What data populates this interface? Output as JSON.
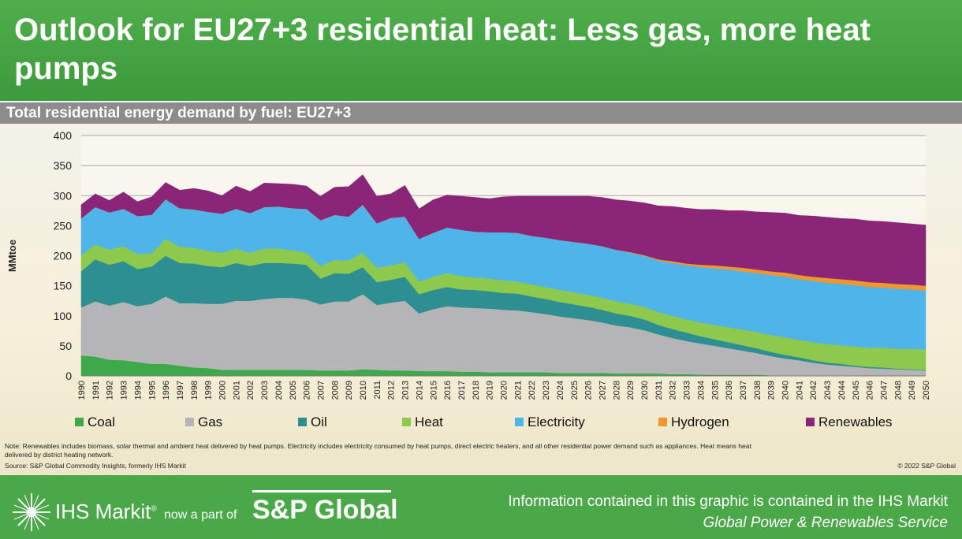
{
  "header": {
    "title": "Outlook for EU27+3 residential heat: Less gas, more heat pumps"
  },
  "subheader": {
    "title": "Total residential energy demand by fuel: EU27+3"
  },
  "chart_data": {
    "type": "area",
    "stacked": true,
    "title": "Total residential energy demand by fuel: EU27+3",
    "ylabel": "MMtoe",
    "xlabel": "",
    "ylim": [
      0,
      400
    ],
    "yticks": [
      "0",
      "50",
      "100",
      "150",
      "200",
      "250",
      "300",
      "350",
      "400"
    ],
    "grid": true,
    "legend_position": "bottom",
    "x": [
      "1990",
      "1991",
      "1992",
      "1993",
      "1994",
      "1995",
      "1996",
      "1997",
      "1998",
      "1999",
      "2000",
      "2001",
      "2002",
      "2003",
      "2004",
      "2005",
      "2006",
      "2007",
      "2008",
      "2009",
      "2010",
      "2011",
      "2012",
      "2013",
      "2014",
      "2015",
      "2016",
      "2017",
      "2018",
      "2019",
      "2020",
      "2021",
      "2022",
      "2023",
      "2024",
      "2025",
      "2026",
      "2027",
      "2028",
      "2029",
      "2030",
      "2031",
      "2032",
      "2033",
      "2034",
      "2035",
      "2036",
      "2037",
      "2038",
      "2039",
      "2040",
      "2041",
      "2042",
      "2043",
      "2044",
      "2045",
      "2046",
      "2047",
      "2048",
      "2049",
      "2050"
    ],
    "series": [
      {
        "name": "Coal",
        "color": "#3da94b",
        "values": [
          34,
          32,
          27,
          26,
          23,
          20,
          20,
          17,
          14,
          13,
          10,
          10,
          10,
          10,
          10,
          10,
          10,
          9,
          9,
          9,
          11,
          10,
          9,
          9,
          8,
          8,
          8,
          7,
          7,
          6,
          6,
          6,
          6,
          6,
          5,
          5,
          5,
          5,
          4,
          4,
          4,
          4,
          3,
          3,
          2,
          2,
          2,
          2,
          2,
          1,
          1,
          1,
          1,
          1,
          1,
          1,
          1,
          1,
          1,
          1,
          1
        ]
      },
      {
        "name": "Gas",
        "color": "#b5b5b7",
        "values": [
          80,
          92,
          90,
          97,
          93,
          100,
          112,
          104,
          107,
          107,
          110,
          115,
          115,
          118,
          120,
          120,
          117,
          110,
          115,
          115,
          125,
          108,
          113,
          116,
          96,
          103,
          108,
          107,
          106,
          106,
          104,
          103,
          100,
          97,
          94,
          91,
          88,
          84,
          80,
          77,
          72,
          65,
          60,
          55,
          52,
          48,
          44,
          40,
          36,
          32,
          28,
          25,
          21,
          18,
          16,
          14,
          12,
          11,
          10,
          9,
          8
        ]
      },
      {
        "name": "Oil",
        "color": "#2e8f92",
        "values": [
          60,
          70,
          68,
          68,
          62,
          62,
          68,
          67,
          66,
          63,
          61,
          63,
          58,
          60,
          58,
          57,
          58,
          43,
          47,
          46,
          45,
          38,
          38,
          40,
          32,
          32,
          32,
          30,
          30,
          29,
          28,
          28,
          26,
          25,
          24,
          23,
          22,
          21,
          20,
          19,
          18,
          16,
          15,
          14,
          12,
          11,
          10,
          9,
          8,
          7,
          6,
          5,
          4,
          3,
          3,
          2,
          2,
          2,
          1,
          1,
          1
        ]
      },
      {
        "name": "Heat",
        "color": "#8cc94c",
        "values": [
          27,
          25,
          25,
          25,
          25,
          22,
          28,
          27,
          26,
          25,
          24,
          24,
          22,
          24,
          24,
          22,
          20,
          21,
          22,
          22,
          24,
          24,
          24,
          24,
          21,
          22,
          23,
          22,
          21,
          21,
          21,
          20,
          20,
          20,
          20,
          20,
          20,
          20,
          20,
          20,
          21,
          21,
          22,
          22,
          23,
          24,
          25,
          26,
          27,
          28,
          29,
          29,
          30,
          31,
          31,
          32,
          32,
          33,
          33,
          34,
          34
        ]
      },
      {
        "name": "Electricity",
        "color": "#4fb5e8",
        "values": [
          61,
          62,
          62,
          62,
          63,
          64,
          66,
          64,
          64,
          65,
          65,
          66,
          66,
          69,
          70,
          70,
          73,
          76,
          75,
          73,
          80,
          74,
          79,
          76,
          71,
          73,
          76,
          77,
          76,
          77,
          80,
          81,
          81,
          82,
          83,
          84,
          85,
          86,
          86,
          85,
          85,
          86,
          88,
          90,
          92,
          94,
          96,
          97,
          98,
          100,
          101,
          101,
          102,
          102,
          102,
          102,
          101,
          100,
          100,
          99,
          98
        ]
      },
      {
        "name": "Hydrogen",
        "color": "#f0962e",
        "values": [
          0,
          0,
          0,
          0,
          0,
          0,
          0,
          0,
          0,
          0,
          0,
          0,
          0,
          0,
          0,
          0,
          0,
          0,
          0,
          0,
          0,
          0,
          0,
          0,
          0,
          0,
          0,
          0,
          0,
          0,
          0,
          0,
          0,
          0,
          0,
          0,
          0,
          0,
          0,
          1,
          1,
          2,
          3,
          3,
          4,
          5,
          5,
          6,
          6,
          6,
          7,
          7,
          7,
          8,
          8,
          8,
          8,
          8,
          8,
          8,
          8
        ]
      },
      {
        "name": "Renewables",
        "color": "#8b2577",
        "values": [
          23,
          22,
          20,
          28,
          24,
          30,
          28,
          30,
          35,
          35,
          30,
          38,
          36,
          40,
          38,
          40,
          38,
          40,
          46,
          50,
          50,
          45,
          40,
          52,
          50,
          55,
          54,
          56,
          57,
          56,
          59,
          61,
          66,
          69,
          73,
          76,
          79,
          81,
          83,
          85,
          87,
          89,
          91,
          92,
          92,
          93,
          93,
          95,
          96,
          98,
          99,
          99,
          101,
          101,
          101,
          102,
          102,
          102,
          102,
          101,
          101
        ]
      }
    ]
  },
  "note": "Note: Renewables includes biomass, solar thermal and ambient heat delivered by heat pumps. Electricity includes electricity consumed by heat pumps, direct electric heaters, and all other residential power demand such as appliances. Heat means heat delivered by district heating network.",
  "source": "Source: S&P Global Commodity Insights, formerly IHS Markit",
  "copyright": "© 2022 S&P Global",
  "footer": {
    "ihs_brand": "IHS Markit",
    "ihs_mark": "®",
    "part_of": "now a part of",
    "spg_brand": "S&P Global",
    "info_line1": "Information contained in this graphic is contained in the IHS Markit",
    "info_line2": "Global Power & Renewables Service"
  }
}
